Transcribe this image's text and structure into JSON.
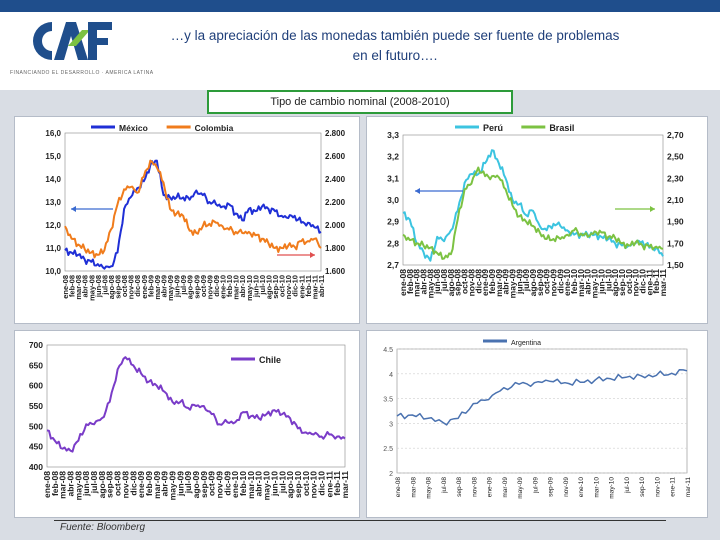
{
  "header": {
    "logo_text": "CAF",
    "tagline": "FINANCIANDO EL DESARROLLO · AMERICA LATINA",
    "title_line1": "…y la apreciación de las monedas también puede ser fuente de problemas",
    "title_line2": "en el futuro…."
  },
  "subtitle": "Tipo de cambio nominal (2008-2010)",
  "source": "Fuente: Bloomberg",
  "months": [
    "ene-08",
    "feb-08",
    "mar-08",
    "abr-08",
    "may-08",
    "jun-08",
    "jul-08",
    "ago-08",
    "sep-08",
    "oct-08",
    "nov-08",
    "dic-08",
    "ene-09",
    "feb-09",
    "mar-09",
    "abr-09",
    "may-09",
    "jun-09",
    "jul-09",
    "ago-09",
    "sep-09",
    "oct-09",
    "nov-09",
    "dic-09",
    "ene-10",
    "feb-10",
    "mar-10",
    "abr-10",
    "may-10",
    "jun-10",
    "jul-10",
    "ago-10",
    "sep-10",
    "oct-10",
    "nov-10",
    "dic-10",
    "ene-11",
    "feb-11",
    "mar-11",
    "abr-11"
  ],
  "colors": {
    "mexico": "#1f2fd6",
    "colombia": "#f07c1c",
    "peru": "#3cc4e0",
    "brasil": "#7cc242",
    "chile": "#7a3cc8",
    "argentina": "#4a72b0",
    "arrow_red": "#e05050",
    "arrow_blue": "#3a6ad0",
    "arrow_green": "#7cc242"
  },
  "chart_data": [
    {
      "type": "line",
      "x_labels": [
        "ene-08",
        "feb-08",
        "mar-08",
        "abr-08",
        "may-08",
        "jun-08",
        "jul-08",
        "ago-08",
        "sep-08",
        "oct-08",
        "nov-08",
        "dic-08",
        "ene-09",
        "feb-09",
        "mar-09",
        "abr-09",
        "may-09",
        "jun-09",
        "jul-09",
        "ago-09",
        "sep-09",
        "oct-09",
        "nov-09",
        "dic-09",
        "ene-10",
        "feb-10",
        "mar-10",
        "abr-10",
        "may-10",
        "jun-10",
        "jul-10",
        "ago-10",
        "sep-10",
        "oct-10",
        "nov-10",
        "dic-10",
        "ene-11",
        "feb-11",
        "mar-11",
        "abr-11"
      ],
      "ylim_left": [
        10.0,
        16.0
      ],
      "yticks_left": [
        "10,0",
        "11,0",
        "12,0",
        "13,0",
        "14,0",
        "15,0",
        "16,0"
      ],
      "ylim_right": [
        1600,
        2800
      ],
      "yticks_right": [
        "1.600",
        "1.800",
        "2.000",
        "2.200",
        "2.400",
        "2.600",
        "2.800"
      ],
      "series": [
        {
          "name": "México",
          "axis": "left",
          "values": [
            10.9,
            10.8,
            10.7,
            10.5,
            10.4,
            10.3,
            10.1,
            10.2,
            10.8,
            12.7,
            13.2,
            13.6,
            13.9,
            14.6,
            14.8,
            13.3,
            13.2,
            13.2,
            13.2,
            13.1,
            13.5,
            13.3,
            13.0,
            12.9,
            12.8,
            12.9,
            12.5,
            12.2,
            12.7,
            12.6,
            12.8,
            12.7,
            12.6,
            12.4,
            12.3,
            12.4,
            12.1,
            12.1,
            11.9,
            11.7
          ]
        },
        {
          "name": "Colombia",
          "axis": "right",
          "values": [
            1990,
            1880,
            1830,
            1790,
            1760,
            1740,
            1780,
            1960,
            2180,
            2310,
            2330,
            2280,
            2420,
            2560,
            2500,
            2370,
            2140,
            2100,
            2080,
            1950,
            1930,
            1990,
            2010,
            2020,
            1990,
            1960,
            1940,
            1930,
            1940,
            1910,
            1880,
            1840,
            1800,
            1800,
            1820,
            1810,
            1860,
            1860,
            1880,
            1800
          ]
        }
      ]
    },
    {
      "type": "line",
      "x_labels": [
        "ene-08",
        "feb-08",
        "mar-08",
        "abr-08",
        "may-08",
        "jun-08",
        "jul-08",
        "ago-08",
        "sep-08",
        "oct-08",
        "nov-08",
        "dic-08",
        "ene-09",
        "feb-09",
        "mar-09",
        "abr-09",
        "may-09",
        "jun-09",
        "jul-09",
        "ago-09",
        "sep-09",
        "oct-09",
        "nov-09",
        "dic-09",
        "ene-10",
        "feb-10",
        "mar-10",
        "abr-10",
        "may-10",
        "jun-10",
        "jul-10",
        "ago-10",
        "sep-10",
        "oct-10",
        "nov-10",
        "dic-10",
        "ene-11",
        "feb-11",
        "mar-11"
      ],
      "ylim_left": [
        2.7,
        3.3
      ],
      "yticks_left": [
        "2,7",
        "2,8",
        "2,9",
        "3,0",
        "3,1",
        "3,2",
        "3,3"
      ],
      "ylim_right": [
        1.5,
        2.7
      ],
      "yticks_right": [
        "1,50",
        "1,70",
        "1,90",
        "2,10",
        "2,30",
        "2,50",
        "2,70"
      ],
      "series": [
        {
          "name": "Perú",
          "axis": "left",
          "values": [
            2.94,
            2.91,
            2.8,
            2.76,
            2.72,
            2.83,
            2.81,
            2.86,
            2.95,
            3.08,
            3.12,
            3.12,
            3.17,
            3.23,
            3.17,
            3.1,
            3.0,
            2.98,
            2.93,
            2.95,
            2.88,
            2.86,
            2.89,
            2.88,
            2.86,
            2.84,
            2.84,
            2.84,
            2.84,
            2.83,
            2.82,
            2.8,
            2.79,
            2.79,
            2.8,
            2.81,
            2.78,
            2.78,
            2.74
          ]
        },
        {
          "name": "Brasil",
          "axis": "right",
          "values": [
            1.78,
            1.73,
            1.7,
            1.68,
            1.66,
            1.61,
            1.56,
            1.6,
            1.92,
            2.2,
            2.25,
            2.4,
            2.32,
            2.32,
            2.31,
            2.2,
            2.05,
            1.95,
            1.9,
            1.86,
            1.8,
            1.74,
            1.74,
            1.74,
            1.78,
            1.82,
            1.79,
            1.76,
            1.81,
            1.8,
            1.76,
            1.75,
            1.7,
            1.68,
            1.71,
            1.68,
            1.67,
            1.67,
            1.65
          ]
        }
      ]
    },
    {
      "type": "line",
      "x_labels": [
        "ene-08",
        "feb-08",
        "mar-08",
        "abr-08",
        "may-08",
        "jun-08",
        "jul-08",
        "ago-08",
        "sep-08",
        "oct-08",
        "nov-08",
        "dic-08",
        "ene-09",
        "feb-09",
        "mar-09",
        "abr-09",
        "may-09",
        "jun-09",
        "jul-09",
        "ago-09",
        "sep-09",
        "oct-09",
        "nov-09",
        "dic-09",
        "ene-10",
        "feb-10",
        "mar-10",
        "abr-10",
        "may-10",
        "jun-10",
        "jul-10",
        "ago-10",
        "sep-10",
        "oct-10",
        "nov-10",
        "dic-10",
        "ene-11",
        "feb-11",
        "mar-11"
      ],
      "ylim": [
        400,
        700
      ],
      "yticks": [
        "400",
        "450",
        "500",
        "550",
        "600",
        "650",
        "700"
      ],
      "series": [
        {
          "name": "Chile",
          "values": [
            490,
            465,
            445,
            440,
            465,
            505,
            505,
            520,
            560,
            640,
            670,
            650,
            630,
            610,
            600,
            585,
            560,
            560,
            545,
            550,
            550,
            530,
            505,
            510,
            510,
            535,
            525,
            520,
            530,
            540,
            530,
            520,
            495,
            485,
            480,
            475,
            480,
            475,
            470
          ]
        }
      ]
    },
    {
      "type": "line",
      "x_labels": [
        "ene-08",
        "mar-08",
        "may-08",
        "jul-08",
        "sep-08",
        "nov-08",
        "ene-09",
        "mar-09",
        "may-09",
        "jul-09",
        "sep-09",
        "nov-09",
        "ene-10",
        "mar-10",
        "may-10",
        "jul-10",
        "sep-10",
        "nov-10",
        "ene-11",
        "mar-11"
      ],
      "ylim": [
        2,
        4.5
      ],
      "yticks": [
        "2",
        "2.5",
        "3",
        "3.5",
        "4",
        "4.5"
      ],
      "series": [
        {
          "name": "Argentina",
          "values": [
            3.15,
            3.17,
            3.1,
            3.02,
            3.1,
            3.4,
            3.48,
            3.72,
            3.79,
            3.82,
            3.85,
            3.82,
            3.83,
            3.88,
            3.9,
            3.93,
            3.96,
            3.97,
            4.01,
            4.06
          ]
        }
      ]
    }
  ]
}
